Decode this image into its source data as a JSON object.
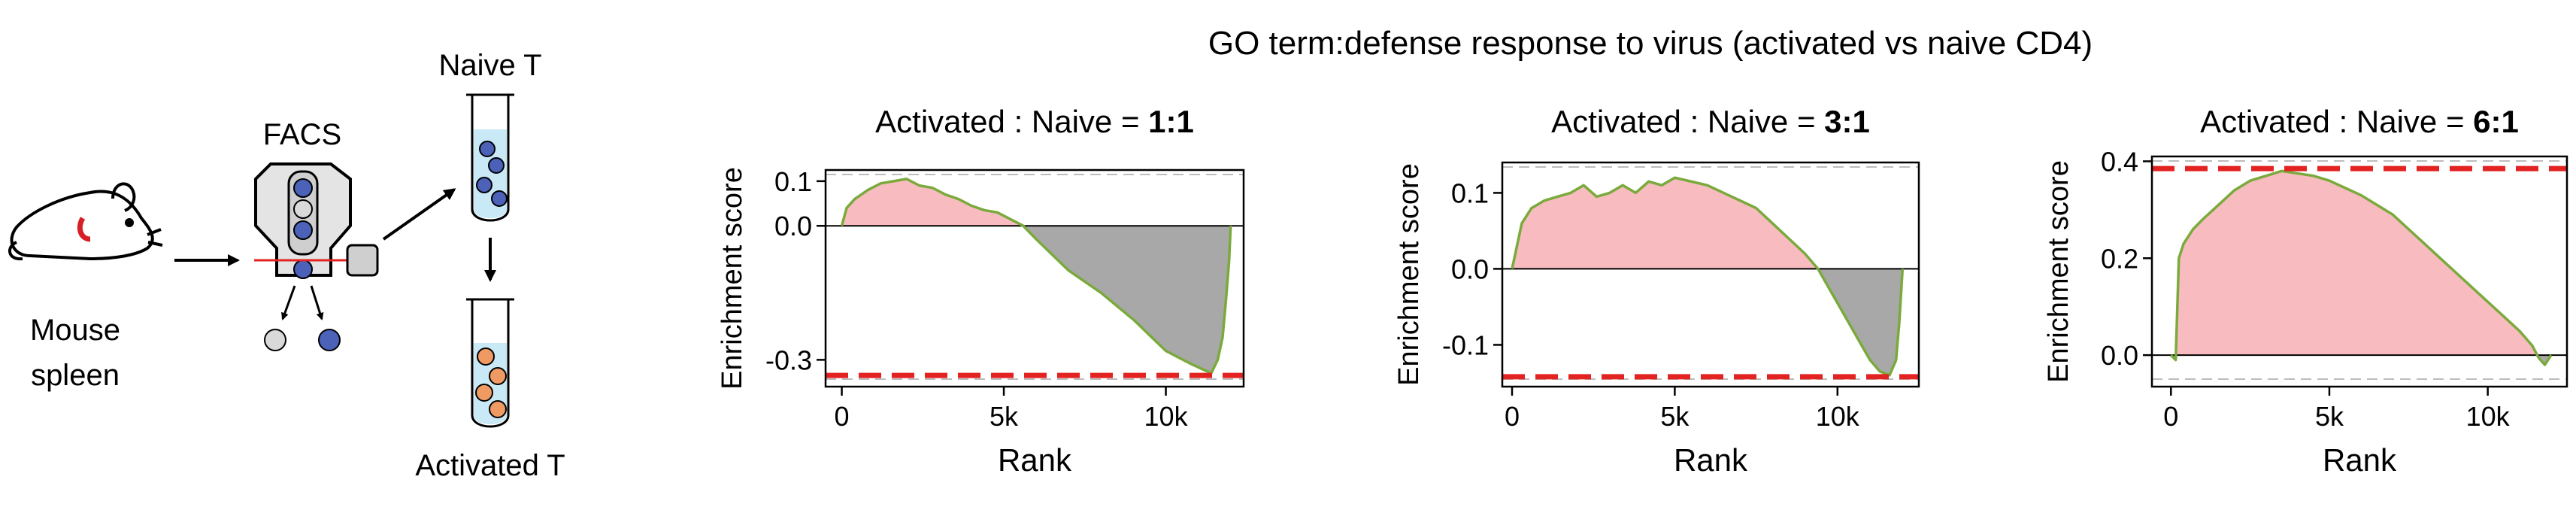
{
  "schematic": {
    "mouse_label_line1": "Mouse",
    "mouse_label_line2": "spleen",
    "facs_label": "FACS",
    "naive_label": "Naive T",
    "activated_label": "Activated T"
  },
  "figure_title": "GO term:defense response to virus (activated vs naive CD4)",
  "colors": {
    "positive_fill": "#f8bcc0",
    "negative_fill": "#a8a8a8",
    "curve": "#7aaa3c",
    "es_line": "#e32222",
    "naive_cell": "#4c61b8",
    "activated_cell": "#ef9a62",
    "tube_liquid": "#c9e9f6",
    "facs_laser": "#e32222"
  },
  "chart_data": [
    {
      "type": "area",
      "title_prefix": "Activated : Naive = ",
      "title_ratio": "1:1",
      "xlabel": "Rank",
      "ylabel": "Enrichment score",
      "xlim": [
        -500,
        12400
      ],
      "ylim": [
        -0.36,
        0.125
      ],
      "xticks": [
        0,
        5000,
        10000
      ],
      "xticklabels": [
        "0",
        "5k",
        "10k"
      ],
      "yticks": [
        0.1,
        0.0,
        -0.3
      ],
      "yticklabels": [
        "0.1",
        "0.0",
        "-0.3"
      ],
      "enrichment_score": -0.335,
      "x": [
        0,
        150,
        400,
        800,
        1200,
        1600,
        2000,
        2400,
        2800,
        3200,
        3600,
        4000,
        4400,
        4800,
        5200,
        5600,
        6000,
        6500,
        7000,
        7500,
        8000,
        8500,
        9000,
        9500,
        10000,
        10400,
        10800,
        11100,
        11400,
        11600,
        11750,
        11850,
        11950,
        12000
      ],
      "y": [
        0.0,
        0.04,
        0.06,
        0.08,
        0.095,
        0.1,
        0.105,
        0.09,
        0.085,
        0.07,
        0.06,
        0.045,
        0.035,
        0.03,
        0.015,
        0.0,
        -0.03,
        -0.065,
        -0.1,
        -0.125,
        -0.15,
        -0.18,
        -0.21,
        -0.245,
        -0.28,
        -0.295,
        -0.31,
        -0.32,
        -0.33,
        -0.3,
        -0.25,
        -0.17,
        -0.08,
        0.0
      ]
    },
    {
      "type": "area",
      "title_prefix": "Activated : Naive = ",
      "title_ratio": "3:1",
      "xlabel": "Rank",
      "ylabel": "Enrichment score",
      "xlim": [
        -300,
        12500
      ],
      "ylim": [
        -0.155,
        0.14
      ],
      "xticks": [
        0,
        5000,
        10000
      ],
      "xticklabels": [
        "0",
        "5k",
        "10k"
      ],
      "yticks": [
        0.1,
        0.0,
        -0.1
      ],
      "yticklabels": [
        "0.1",
        "0.0",
        "-0.1"
      ],
      "enrichment_score": -0.142,
      "x": [
        0,
        100,
        300,
        600,
        1000,
        1400,
        1800,
        2200,
        2600,
        3000,
        3400,
        3800,
        4200,
        4600,
        5000,
        5500,
        6000,
        6500,
        7000,
        7500,
        8000,
        8500,
        9000,
        9400,
        9800,
        10200,
        10600,
        11000,
        11300,
        11600,
        11800,
        11900,
        12000
      ],
      "y": [
        0.0,
        0.02,
        0.06,
        0.08,
        0.09,
        0.095,
        0.1,
        0.11,
        0.095,
        0.1,
        0.11,
        0.1,
        0.115,
        0.11,
        0.12,
        0.115,
        0.11,
        0.1,
        0.09,
        0.08,
        0.06,
        0.04,
        0.02,
        0.0,
        -0.03,
        -0.06,
        -0.09,
        -0.12,
        -0.135,
        -0.14,
        -0.12,
        -0.07,
        0.0
      ]
    },
    {
      "type": "area",
      "title_prefix": "Activated : Naive = ",
      "title_ratio": "6:1",
      "xlabel": "Rank",
      "ylabel": "Enrichment score",
      "xlim": [
        -600,
        12500
      ],
      "ylim": [
        -0.065,
        0.41
      ],
      "xticks": [
        0,
        5000,
        10000
      ],
      "xticklabels": [
        "0",
        "5k",
        "10k"
      ],
      "yticks": [
        0.4,
        0.2,
        0.0
      ],
      "yticklabels": [
        "0.4",
        "0.2",
        "0.0"
      ],
      "enrichment_score": 0.385,
      "x": [
        0,
        150,
        250,
        400,
        700,
        1000,
        1500,
        2000,
        2500,
        3000,
        3500,
        4000,
        4500,
        5000,
        5500,
        6000,
        6500,
        7000,
        7500,
        8000,
        8500,
        9000,
        9500,
        10000,
        10500,
        11000,
        11400,
        11600,
        11800,
        12000
      ],
      "y": [
        0.0,
        -0.01,
        0.2,
        0.23,
        0.26,
        0.28,
        0.31,
        0.34,
        0.36,
        0.37,
        0.38,
        0.375,
        0.37,
        0.36,
        0.345,
        0.33,
        0.31,
        0.29,
        0.26,
        0.23,
        0.2,
        0.17,
        0.14,
        0.11,
        0.08,
        0.05,
        0.02,
        -0.005,
        -0.02,
        0.0
      ]
    }
  ]
}
